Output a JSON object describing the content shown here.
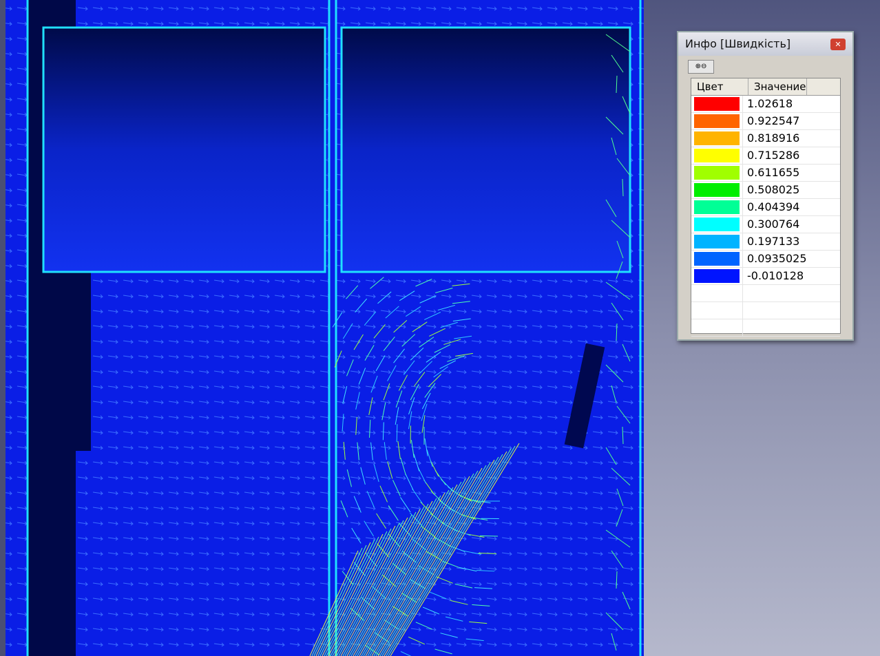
{
  "window": {
    "title": "Инфо [Швидкість]",
    "table": {
      "headers": [
        "Цвет",
        "Значение"
      ],
      "rows": [
        {
          "color": "#ff0000",
          "value": "1.02618"
        },
        {
          "color": "#ff6400",
          "value": "0.922547"
        },
        {
          "color": "#ffb400",
          "value": "0.818916"
        },
        {
          "color": "#ffff00",
          "value": "0.715286"
        },
        {
          "color": "#a0ff00",
          "value": "0.611655"
        },
        {
          "color": "#00ee00",
          "value": "0.508025"
        },
        {
          "color": "#00ff96",
          "value": "0.404394"
        },
        {
          "color": "#00ffff",
          "value": "0.300764"
        },
        {
          "color": "#00b4ff",
          "value": "0.197133"
        },
        {
          "color": "#0064ff",
          "value": "0.0935025"
        },
        {
          "color": "#0014ff",
          "value": "-0.010128"
        }
      ]
    }
  }
}
